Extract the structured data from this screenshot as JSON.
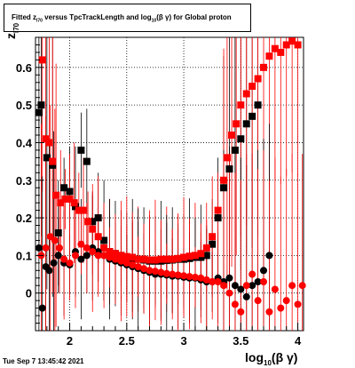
{
  "title": {
    "part1": "Fitted  z",
    "sub1": "I70",
    "part2": " versus TpcTrackLength and log",
    "sub2": "10",
    "part3": "(β  γ) for Global proton"
  },
  "timestamp": "Tue Sep  7 13:45:42 2021",
  "xlabel": {
    "main": "log",
    "sub": "10",
    "rest": "(β γ)"
  },
  "ylabel": {
    "main": "z",
    "sub": "I70"
  },
  "colors": {
    "series_black": "#000000",
    "series_red": "#ff0000",
    "grid": "#000000"
  },
  "chart_data": {
    "type": "scatter",
    "xlim": [
      1.7,
      4.05
    ],
    "ylim": [
      -0.1,
      0.68
    ],
    "grid": true,
    "x_ticks": [
      2,
      2.5,
      3,
      3.5,
      4
    ],
    "x_tick_labels": [
      "2",
      "2.5",
      "3",
      "3.5",
      "4"
    ],
    "y_ticks": [
      0,
      0.1,
      0.2,
      0.3,
      0.4,
      0.5,
      0.6
    ],
    "y_tick_labels": [
      "0",
      "0.1",
      "0.2",
      "0.3",
      "0.4",
      "0.5",
      "0.6"
    ],
    "series": [
      {
        "marker": "square",
        "color": "#000000",
        "points": [
          [
            1.73,
            0.48
          ],
          [
            1.75,
            0.5
          ],
          [
            1.8,
            0.36
          ],
          [
            1.85,
            0.34
          ],
          [
            1.9,
            0.16
          ],
          [
            1.95,
            0.28
          ],
          [
            2.0,
            0.27
          ],
          [
            2.05,
            0.23
          ],
          [
            2.1,
            0.38
          ],
          [
            2.15,
            0.35
          ],
          [
            2.2,
            0.19
          ],
          [
            2.25,
            0.2
          ],
          [
            2.3,
            0.14
          ],
          [
            2.35,
            0.11
          ],
          [
            2.4,
            0.105
          ],
          [
            2.45,
            0.1
          ],
          [
            2.5,
            0.095
          ],
          [
            2.55,
            0.09
          ],
          [
            2.6,
            0.09
          ],
          [
            2.65,
            0.088
          ],
          [
            2.7,
            0.085
          ],
          [
            2.75,
            0.085
          ],
          [
            2.8,
            0.085
          ],
          [
            2.85,
            0.087
          ],
          [
            2.9,
            0.088
          ],
          [
            2.95,
            0.09
          ],
          [
            3.0,
            0.09
          ],
          [
            3.05,
            0.092
          ],
          [
            3.1,
            0.095
          ],
          [
            3.15,
            0.095
          ],
          [
            3.2,
            0.1
          ],
          [
            3.25,
            0.13
          ],
          [
            3.3,
            0.2
          ],
          [
            3.35,
            0.28
          ],
          [
            3.4,
            0.33
          ],
          [
            3.45,
            0.38
          ],
          [
            3.5,
            0.41
          ],
          [
            3.55,
            0.45
          ],
          [
            3.6,
            0.47
          ],
          [
            3.65,
            0.5
          ]
        ]
      },
      {
        "marker": "square",
        "color": "#ff0000",
        "points": [
          [
            1.76,
            0.62
          ],
          [
            1.79,
            0.41
          ],
          [
            1.82,
            0.4
          ],
          [
            1.85,
            0.35
          ],
          [
            1.88,
            0.26
          ],
          [
            1.92,
            0.24
          ],
          [
            1.96,
            0.25
          ],
          [
            2.0,
            0.25
          ],
          [
            2.04,
            0.24
          ],
          [
            2.08,
            0.22
          ],
          [
            2.12,
            0.22
          ],
          [
            2.16,
            0.19
          ],
          [
            2.2,
            0.17
          ],
          [
            2.25,
            0.15
          ],
          [
            2.3,
            0.12
          ],
          [
            2.35,
            0.11
          ],
          [
            2.4,
            0.105
          ],
          [
            2.45,
            0.1
          ],
          [
            2.5,
            0.097
          ],
          [
            2.55,
            0.095
          ],
          [
            2.6,
            0.09
          ],
          [
            2.65,
            0.09
          ],
          [
            2.7,
            0.088
          ],
          [
            2.75,
            0.088
          ],
          [
            2.8,
            0.09
          ],
          [
            2.85,
            0.09
          ],
          [
            2.9,
            0.09
          ],
          [
            2.95,
            0.092
          ],
          [
            3.0,
            0.095
          ],
          [
            3.05,
            0.098
          ],
          [
            3.1,
            0.1
          ],
          [
            3.15,
            0.105
          ],
          [
            3.2,
            0.12
          ],
          [
            3.25,
            0.15
          ],
          [
            3.3,
            0.22
          ],
          [
            3.35,
            0.3
          ],
          [
            3.38,
            0.36
          ],
          [
            3.42,
            0.42
          ],
          [
            3.46,
            0.45
          ],
          [
            3.5,
            0.5
          ],
          [
            3.55,
            0.53
          ],
          [
            3.6,
            0.55
          ],
          [
            3.65,
            0.57
          ],
          [
            3.7,
            0.6
          ],
          [
            3.75,
            0.63
          ],
          [
            3.8,
            0.65
          ],
          [
            3.85,
            0.64
          ],
          [
            3.9,
            0.66
          ],
          [
            3.95,
            0.67
          ],
          [
            4.0,
            0.66
          ]
        ]
      },
      {
        "marker": "circle",
        "color": "#000000",
        "points": [
          [
            1.73,
            0.12
          ],
          [
            1.76,
            -0.04
          ],
          [
            1.79,
            0.07
          ],
          [
            1.82,
            0.06
          ],
          [
            1.86,
            0.08
          ],
          [
            1.9,
            0.1
          ],
          [
            1.95,
            0.08
          ],
          [
            2.0,
            0.075
          ],
          [
            2.05,
            0.11
          ],
          [
            2.1,
            0.09
          ],
          [
            2.15,
            0.1
          ],
          [
            2.2,
            0.12
          ],
          [
            2.25,
            0.11
          ],
          [
            2.3,
            0.1
          ],
          [
            2.35,
            0.09
          ],
          [
            2.4,
            0.085
          ],
          [
            2.45,
            0.08
          ],
          [
            2.5,
            0.075
          ],
          [
            2.55,
            0.07
          ],
          [
            2.6,
            0.065
          ],
          [
            2.65,
            0.06
          ],
          [
            2.7,
            0.055
          ],
          [
            2.75,
            0.05
          ],
          [
            2.8,
            0.05
          ],
          [
            2.85,
            0.048
          ],
          [
            2.9,
            0.045
          ],
          [
            2.95,
            0.045
          ],
          [
            3.0,
            0.042
          ],
          [
            3.05,
            0.04
          ],
          [
            3.1,
            0.04
          ],
          [
            3.15,
            0.035
          ],
          [
            3.2,
            0.03
          ],
          [
            3.25,
            0.03
          ],
          [
            3.3,
            0.04
          ],
          [
            3.35,
            0.03
          ],
          [
            3.4,
            0.04
          ],
          [
            3.45,
            0.02
          ],
          [
            3.5,
            0.01
          ],
          [
            3.55,
            -0.01
          ],
          [
            3.6,
            0.02
          ],
          [
            3.65,
            0.03
          ],
          [
            3.7,
            0.06
          ],
          [
            3.75,
            0.1
          ]
        ]
      },
      {
        "marker": "circle",
        "color": "#ff0000",
        "points": [
          [
            1.75,
            0.1
          ],
          [
            1.79,
            0.12
          ],
          [
            1.83,
            0.15
          ],
          [
            1.87,
            0.14
          ],
          [
            1.91,
            0.12
          ],
          [
            1.95,
            0.09
          ],
          [
            2.0,
            0.08
          ],
          [
            2.05,
            0.1
          ],
          [
            2.1,
            0.13
          ],
          [
            2.15,
            0.12
          ],
          [
            2.2,
            0.11
          ],
          [
            2.25,
            0.1
          ],
          [
            2.3,
            0.1
          ],
          [
            2.35,
            0.095
          ],
          [
            2.4,
            0.09
          ],
          [
            2.45,
            0.085
          ],
          [
            2.5,
            0.08
          ],
          [
            2.55,
            0.075
          ],
          [
            2.6,
            0.07
          ],
          [
            2.65,
            0.065
          ],
          [
            2.7,
            0.06
          ],
          [
            2.75,
            0.058
          ],
          [
            2.8,
            0.055
          ],
          [
            2.85,
            0.052
          ],
          [
            2.9,
            0.05
          ],
          [
            2.95,
            0.048
          ],
          [
            3.0,
            0.046
          ],
          [
            3.05,
            0.044
          ],
          [
            3.1,
            0.042
          ],
          [
            3.15,
            0.04
          ],
          [
            3.2,
            0.035
          ],
          [
            3.25,
            0.03
          ],
          [
            3.3,
            0.03
          ],
          [
            3.35,
            0.02
          ],
          [
            3.4,
            0.0
          ],
          [
            3.45,
            -0.03
          ],
          [
            3.5,
            -0.05
          ],
          [
            3.55,
            0.02
          ],
          [
            3.6,
            0.05
          ],
          [
            3.65,
            -0.02
          ],
          [
            3.7,
            0.03
          ],
          [
            3.75,
            -0.05
          ],
          [
            3.8,
            0.01
          ],
          [
            3.85,
            -0.04
          ],
          [
            3.9,
            -0.02
          ],
          [
            3.95,
            0.02
          ],
          [
            4.0,
            -0.03
          ],
          [
            4.04,
            0.02
          ]
        ]
      }
    ]
  }
}
